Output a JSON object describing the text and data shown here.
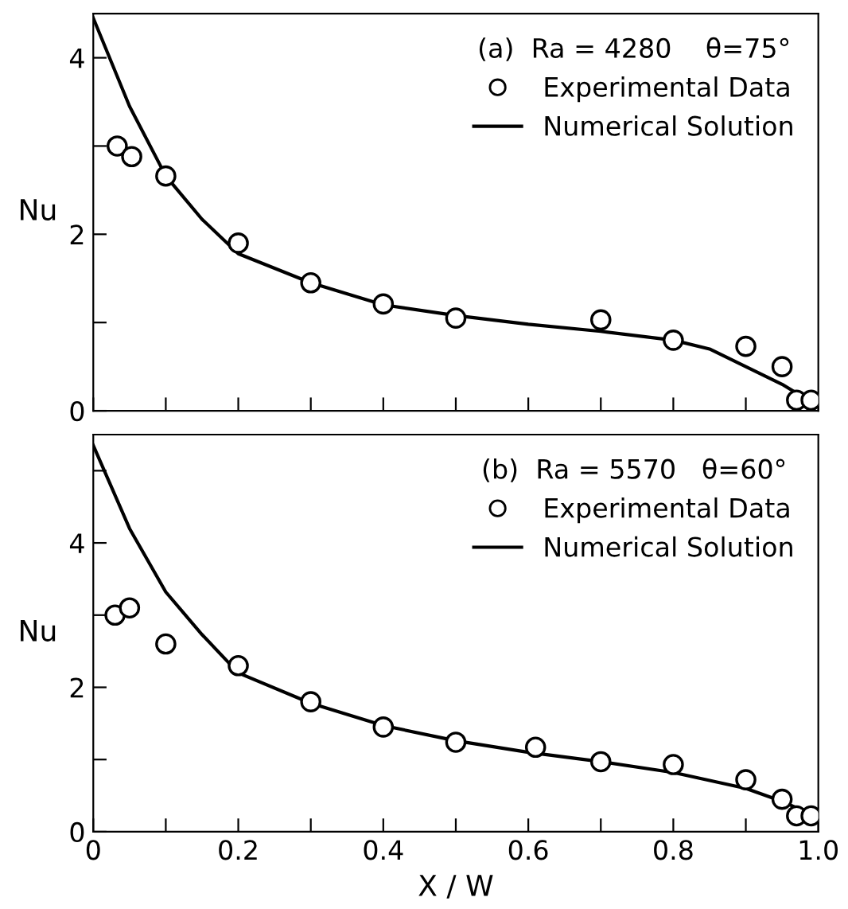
{
  "chart_data": [
    {
      "type": "scatter",
      "ylabel": "Nu",
      "legend_title": "(a)  Ra = 4280    θ=75°",
      "legend": "top right",
      "tick_labels": "y",
      "xlim": [
        0,
        1.0
      ],
      "ylim": [
        0,
        4.5
      ],
      "xticks": [
        {
          "value": 0,
          "label": null
        },
        {
          "value": 0.1,
          "label": null
        },
        {
          "value": 0.2,
          "label": null
        },
        {
          "value": 0.3,
          "label": null
        },
        {
          "value": 0.4,
          "label": null
        },
        {
          "value": 0.5,
          "label": null
        },
        {
          "value": 0.6,
          "label": null
        },
        {
          "value": 0.7,
          "label": null
        },
        {
          "value": 0.8,
          "label": null
        },
        {
          "value": 0.9,
          "label": null
        },
        {
          "value": 1.0,
          "label": null
        }
      ],
      "yticks": [
        0,
        {
          "value": 1,
          "label": null
        },
        2,
        {
          "value": 3,
          "label": null
        },
        4
      ],
      "series": [
        {
          "name": "Experimental Data",
          "marker": "circle",
          "color": "#000000",
          "x": [
            0.033,
            0.053,
            0.1,
            0.2,
            0.3,
            0.4,
            0.5,
            0.7,
            0.8,
            0.9,
            0.95,
            0.97,
            0.99
          ],
          "values": [
            3.0,
            2.88,
            2.66,
            1.9,
            1.45,
            1.21,
            1.05,
            1.03,
            0.8,
            0.73,
            0.5,
            0.12,
            0.12
          ]
        },
        {
          "name": "Numerical Solution",
          "type": "line",
          "line_style": "solid",
          "color": "#000000",
          "x": [
            0,
            0.05,
            0.1,
            0.15,
            0.2,
            0.3,
            0.4,
            0.5,
            0.6,
            0.7,
            0.8,
            0.85,
            0.9,
            0.95,
            1.0
          ],
          "values": [
            4.45,
            3.45,
            2.66,
            2.17,
            1.78,
            1.45,
            1.2,
            1.08,
            0.98,
            0.9,
            0.8,
            0.7,
            0.5,
            0.3,
            0.05
          ]
        }
      ]
    },
    {
      "type": "scatter",
      "ylabel": "Nu",
      "xlabel": "X / W",
      "legend_title": "(b)  Ra = 5570   θ=60°",
      "legend": "top right",
      "xlim": [
        0,
        1.0
      ],
      "ylim": [
        0,
        5.5
      ],
      "xticks": [
        0,
        {
          "value": 0.1,
          "label": null
        },
        0.2,
        {
          "value": 0.3,
          "label": null
        },
        0.4,
        {
          "value": 0.5,
          "label": null
        },
        0.6,
        {
          "value": 0.7,
          "label": null
        },
        0.8,
        {
          "value": 0.9,
          "label": null
        },
        {
          "value": 1.0,
          "label": "1.0"
        }
      ],
      "yticks": [
        0,
        {
          "value": 1,
          "label": null
        },
        2,
        {
          "value": 3,
          "label": null
        },
        4,
        {
          "value": 5,
          "label": null
        }
      ],
      "series": [
        {
          "name": "Experimental Data",
          "marker": "circle",
          "color": "#000000",
          "x": [
            0.03,
            0.05,
            0.1,
            0.2,
            0.3,
            0.4,
            0.5,
            0.61,
            0.7,
            0.8,
            0.9,
            0.95,
            0.97,
            0.99
          ],
          "values": [
            3.0,
            3.1,
            2.6,
            2.3,
            1.8,
            1.45,
            1.24,
            1.17,
            0.97,
            0.93,
            0.72,
            0.45,
            0.22,
            0.22
          ]
        },
        {
          "name": "Numerical Solution",
          "type": "line",
          "line_style": "solid",
          "color": "#000000",
          "x": [
            0,
            0.05,
            0.1,
            0.15,
            0.2,
            0.3,
            0.4,
            0.5,
            0.6,
            0.7,
            0.8,
            0.9,
            0.95,
            1.0
          ],
          "values": [
            5.35,
            4.2,
            3.32,
            2.73,
            2.2,
            1.78,
            1.47,
            1.26,
            1.1,
            0.97,
            0.82,
            0.6,
            0.42,
            0.2
          ]
        }
      ]
    }
  ]
}
